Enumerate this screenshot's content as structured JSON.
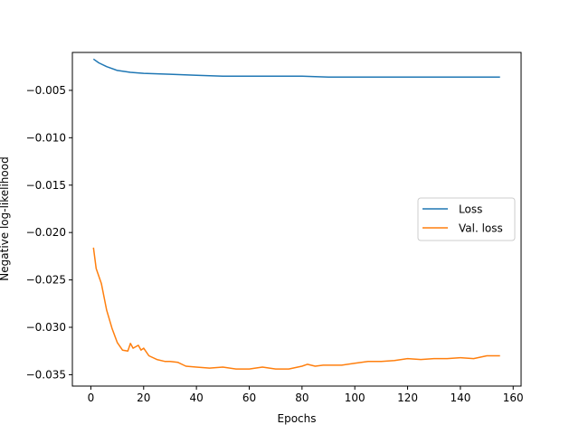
{
  "chart_data": {
    "type": "line",
    "title": "",
    "xlabel": "Epochs",
    "ylabel": "Negative log-likelihood",
    "xlim": [
      -7,
      163
    ],
    "ylim": [
      -0.0362,
      -0.001
    ],
    "xticks": [
      0,
      20,
      40,
      60,
      80,
      100,
      120,
      140,
      160
    ],
    "xtick_labels": [
      "0",
      "20",
      "40",
      "60",
      "80",
      "100",
      "120",
      "140",
      "160"
    ],
    "yticks": [
      -0.005,
      -0.01,
      -0.015,
      -0.02,
      -0.025,
      -0.03,
      -0.035
    ],
    "ytick_labels": [
      "−0.005",
      "−0.010",
      "−0.015",
      "−0.020",
      "−0.025",
      "−0.030",
      "−0.035"
    ],
    "grid": false,
    "legend_position": "center-right",
    "series": [
      {
        "name": "Loss",
        "color": "#1f77b4",
        "x": [
          1,
          3,
          6,
          10,
          15,
          20,
          30,
          40,
          50,
          60,
          70,
          80,
          90,
          100,
          110,
          120,
          130,
          140,
          150,
          155
        ],
        "y": [
          -0.0017,
          -0.0021,
          -0.0025,
          -0.0029,
          -0.0031,
          -0.0032,
          -0.0033,
          -0.0034,
          -0.0035,
          -0.0035,
          -0.0035,
          -0.0035,
          -0.0036,
          -0.0036,
          -0.0036,
          -0.0036,
          -0.0036,
          -0.0036,
          -0.0036,
          -0.0036
        ]
      },
      {
        "name": "Val. loss",
        "color": "#ff7f0e",
        "x": [
          1,
          2,
          4,
          6,
          8,
          10,
          12,
          14,
          15,
          16,
          18,
          19,
          20,
          22,
          25,
          28,
          30,
          33,
          36,
          40,
          45,
          50,
          55,
          60,
          65,
          70,
          75,
          80,
          82,
          85,
          88,
          90,
          95,
          100,
          105,
          110,
          115,
          120,
          125,
          130,
          135,
          140,
          145,
          150,
          152,
          155
        ],
        "y": [
          -0.0216,
          -0.0238,
          -0.0254,
          -0.0282,
          -0.0301,
          -0.0316,
          -0.0324,
          -0.0325,
          -0.0317,
          -0.0322,
          -0.0319,
          -0.0324,
          -0.0322,
          -0.033,
          -0.0334,
          -0.0336,
          -0.0336,
          -0.0337,
          -0.0341,
          -0.0342,
          -0.0343,
          -0.0342,
          -0.0344,
          -0.0344,
          -0.0342,
          -0.0344,
          -0.0344,
          -0.0341,
          -0.0339,
          -0.0341,
          -0.034,
          -0.034,
          -0.034,
          -0.0338,
          -0.0336,
          -0.0336,
          -0.0335,
          -0.0333,
          -0.0334,
          -0.0333,
          -0.0333,
          -0.0332,
          -0.0333,
          -0.033,
          -0.033,
          -0.033
        ]
      }
    ]
  }
}
